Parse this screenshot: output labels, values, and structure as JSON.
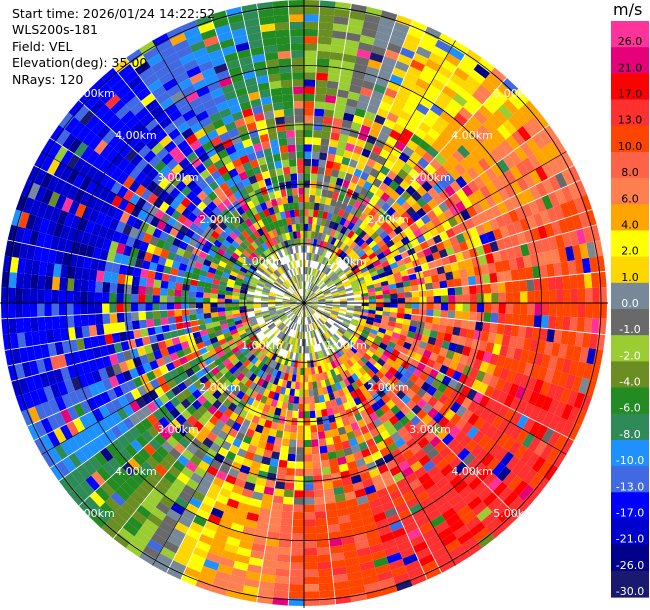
{
  "header": {
    "start_time": "Start time: 2026/01/24 14:22:52",
    "site": "WLS200s-181",
    "field": "Field: VEL",
    "elevation": "Elevation(deg): 35.00",
    "nrays": "NRays: 120"
  },
  "colorbar": {
    "unit": "m/s",
    "levels": [
      {
        "label": "26.0",
        "color": "#ff3399"
      },
      {
        "label": "21.0",
        "color": "#e6007a"
      },
      {
        "label": "17.0",
        "color": "#ff0000"
      },
      {
        "label": "13.0",
        "color": "#ff3030"
      },
      {
        "label": "10.0",
        "color": "#ff4500"
      },
      {
        "label": "8.0",
        "color": "#ff6347"
      },
      {
        "label": "6.0",
        "color": "#ff7f50"
      },
      {
        "label": "4.0",
        "color": "#ffa500"
      },
      {
        "label": "2.0",
        "color": "#ffff00"
      },
      {
        "label": "1.0",
        "color": "#ffd700"
      },
      {
        "label": "0.0",
        "color": "#778899"
      },
      {
        "label": "-1.0",
        "color": "#696969"
      },
      {
        "label": "-2.0",
        "color": "#9acd32"
      },
      {
        "label": "-4.0",
        "color": "#6b8e23"
      },
      {
        "label": "-6.0",
        "color": "#228b22"
      },
      {
        "label": "-8.0",
        "color": "#2e8b57"
      },
      {
        "label": "-10.0",
        "color": "#1e90ff"
      },
      {
        "label": "-13.0",
        "color": "#4169e1"
      },
      {
        "label": "-17.0",
        "color": "#0000ff"
      },
      {
        "label": "-21.0",
        "color": "#0000cd"
      },
      {
        "label": "-26.0",
        "color": "#00008b"
      },
      {
        "label": "-30.0",
        "color": "#191970"
      }
    ]
  },
  "chart_data": {
    "type": "heatmap",
    "projection": "polar (PPI)",
    "field": "VEL",
    "units": "m/s",
    "n_rays": 120,
    "range_ring_labels": [
      "1.00km",
      "2.00km",
      "3.00km",
      "4.00km",
      "5.00km"
    ],
    "range_rings_km": [
      1,
      2,
      3,
      4,
      5
    ],
    "max_range_km": 5.1,
    "pattern": "wind velocity: positive (yellow-orange-red) on east side, negative (green-blue) on west side, near-zero (grey/yellow-green) in the inner ring, noisy multicolor mid ranges"
  }
}
